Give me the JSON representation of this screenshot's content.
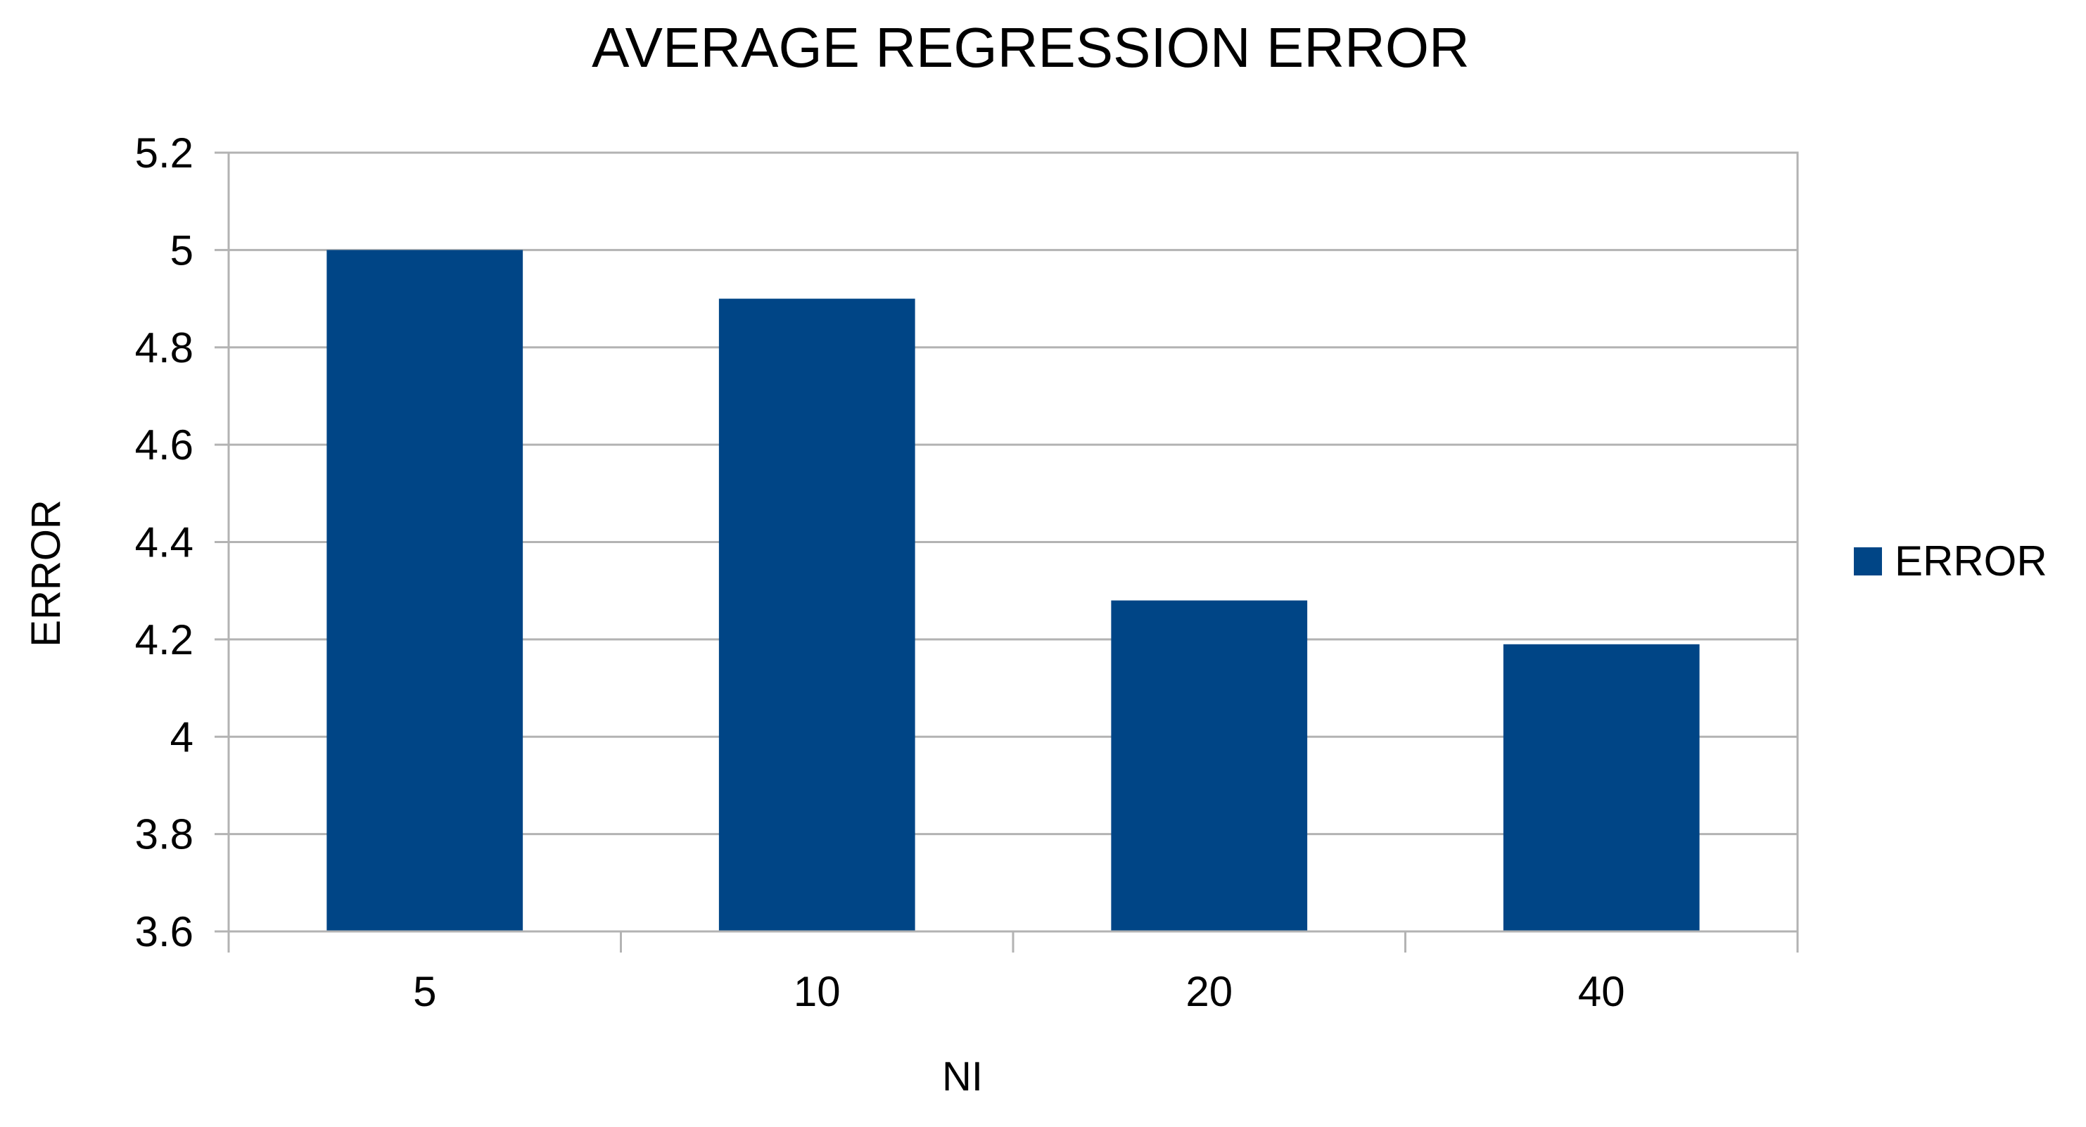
{
  "chart_data": {
    "type": "bar",
    "title": "AVERAGE REGRESSION ERROR",
    "xlabel": "NI",
    "ylabel": "ERROR",
    "categories": [
      "5",
      "10",
      "20",
      "40"
    ],
    "series": [
      {
        "name": "ERROR",
        "values": [
          5.0,
          4.9,
          4.28,
          4.19
        ],
        "color": "#004586"
      }
    ],
    "ylim": [
      3.6,
      5.2
    ],
    "yticks": [
      "3.6",
      "3.8",
      "4",
      "4.2",
      "4.4",
      "4.6",
      "4.8",
      "5",
      "5.2"
    ],
    "grid": true,
    "grid_color": "#b3b3b3",
    "legend_position": "right"
  }
}
